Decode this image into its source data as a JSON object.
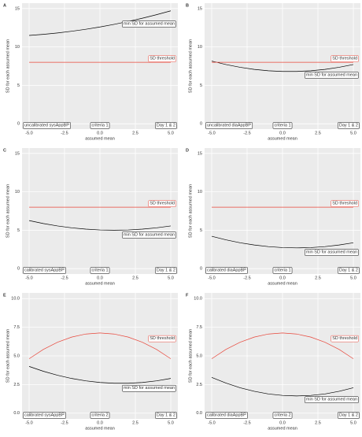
{
  "chart_data": [
    {
      "type": "line",
      "panel_label": "A",
      "x_label": "assumed mean",
      "y_label": "SD for each assumed mean",
      "x": [
        -5,
        -4,
        -3,
        -2,
        -1,
        0,
        1,
        2,
        3,
        4,
        5
      ],
      "series": [
        {
          "name": "min SD for assumed mean",
          "color": "#000000",
          "values": [
            11.5,
            11.64,
            11.82,
            12.04,
            12.3,
            12.6,
            12.94,
            13.32,
            13.74,
            14.2,
            14.7
          ]
        },
        {
          "name": "SD threshold",
          "color": "#e8463a",
          "values": [
            8,
            8,
            8,
            8,
            8,
            8,
            8,
            8,
            8,
            8,
            8
          ]
        }
      ],
      "annotations": [
        "uncalibrated sysAppBP",
        "criteria 1",
        "Day 1 & 2"
      ],
      "xlim": [
        -5.5,
        5.5
      ],
      "xticks": [
        {
          "value": -5,
          "label": "-5.0"
        },
        {
          "value": -2.5,
          "label": "-2.5"
        },
        {
          "value": 0,
          "label": "0.0"
        },
        {
          "value": 2.5,
          "label": "2.5"
        },
        {
          "value": 5,
          "label": "5.0"
        }
      ],
      "ylim": [
        -0.7,
        15.7
      ],
      "yticks": [
        0,
        5,
        10,
        15
      ],
      "grid": true
    },
    {
      "type": "line",
      "panel_label": "B",
      "x_label": "assumed mean",
      "y_label": "SD for each assumed mean",
      "x": [
        -5,
        -4,
        -3,
        -2,
        -1,
        0,
        1,
        2,
        3,
        4,
        5
      ],
      "series": [
        {
          "name": "min SD for assumed mean",
          "color": "#000000",
          "values": [
            8.16,
            7.71,
            7.35,
            7.08,
            6.9,
            6.81,
            6.81,
            6.9,
            7.08,
            7.35,
            7.71
          ]
        },
        {
          "name": "SD threshold",
          "color": "#e8463a",
          "values": [
            8,
            8,
            8,
            8,
            8,
            8,
            8,
            8,
            8,
            8,
            8
          ]
        }
      ],
      "annotations": [
        "uncalibrated diaAppBP",
        "criteria 1",
        "Day 1 & 2"
      ],
      "xlim": [
        -5.5,
        5.5
      ],
      "xticks": [
        {
          "value": -5,
          "label": "-5.0"
        },
        {
          "value": -2.5,
          "label": "-2.5"
        },
        {
          "value": 0,
          "label": "0.0"
        },
        {
          "value": 2.5,
          "label": "2.5"
        },
        {
          "value": 5,
          "label": "5.0"
        }
      ],
      "ylim": [
        -0.7,
        15.7
      ],
      "yticks": [
        0,
        5,
        10,
        15
      ],
      "grid": true
    },
    {
      "type": "line",
      "panel_label": "C",
      "x_label": "assumed mean",
      "y_label": "SD for each assumed mean",
      "x": [
        -5,
        -4,
        -3,
        -2,
        -1,
        0,
        1,
        2,
        3,
        4,
        5
      ],
      "series": [
        {
          "name": "min SD for assumed mean",
          "color": "#000000",
          "values": [
            6.26,
            5.875,
            5.56,
            5.315,
            5.14,
            5.035,
            5.0,
            5.035,
            5.14,
            5.315,
            5.56
          ]
        },
        {
          "name": "SD threshold",
          "color": "#e8463a",
          "values": [
            8,
            8,
            8,
            8,
            8,
            8,
            8,
            8,
            8,
            8,
            8
          ]
        }
      ],
      "annotations": [
        "calibrated sysAppBP",
        "criteria 1",
        "Day 1 & 2"
      ],
      "xlim": [
        -5.5,
        5.5
      ],
      "xticks": [
        {
          "value": -5,
          "label": "-5.0"
        },
        {
          "value": -2.5,
          "label": "-2.5"
        },
        {
          "value": 0,
          "label": "0.0"
        },
        {
          "value": 2.5,
          "label": "2.5"
        },
        {
          "value": 5,
          "label": "5.0"
        }
      ],
      "ylim": [
        -0.7,
        15.7
      ],
      "yticks": [
        0,
        5,
        10,
        15
      ],
      "grid": true
    },
    {
      "type": "line",
      "panel_label": "D",
      "x_label": "assumed mean",
      "y_label": "SD for each assumed mean",
      "x": [
        -5,
        -4,
        -3,
        -2,
        -1,
        0,
        1,
        2,
        3,
        4,
        5
      ],
      "series": [
        {
          "name": "min SD for assumed mean",
          "color": "#000000",
          "values": [
            4.21,
            3.75,
            3.37,
            3.08,
            2.87,
            2.74,
            2.7,
            2.74,
            2.87,
            3.08,
            3.37
          ]
        },
        {
          "name": "SD threshold",
          "color": "#e8463a",
          "values": [
            8,
            8,
            8,
            8,
            8,
            8,
            8,
            8,
            8,
            8,
            8
          ]
        }
      ],
      "annotations": [
        "calibrated diaAppBP",
        "criteria 1",
        "Day 1 & 2"
      ],
      "xlim": [
        -5.5,
        5.5
      ],
      "xticks": [
        {
          "value": -5,
          "label": "-5.0"
        },
        {
          "value": -2.5,
          "label": "-2.5"
        },
        {
          "value": 0,
          "label": "0.0"
        },
        {
          "value": 2.5,
          "label": "2.5"
        },
        {
          "value": 5,
          "label": "5.0"
        }
      ],
      "ylim": [
        -0.7,
        15.7
      ],
      "yticks": [
        0,
        5,
        10,
        15
      ],
      "grid": true
    },
    {
      "type": "line",
      "panel_label": "E",
      "x_label": "assumed mean",
      "y_label": "SD for each assumed mean",
      "x": [
        -5,
        -4,
        -3,
        -2,
        -1,
        0,
        1,
        2,
        3,
        4,
        5
      ],
      "series": [
        {
          "name": "min SD for assumed mean",
          "color": "#000000",
          "values": [
            4.08,
            3.66,
            3.31,
            3.03,
            2.82,
            2.68,
            2.61,
            2.61,
            2.68,
            2.82,
            3.03
          ]
        },
        {
          "name": "SD threshold",
          "color": "#e8463a",
          "values": [
            4.75,
            5.56,
            6.19,
            6.64,
            6.91,
            7.0,
            6.91,
            6.64,
            6.19,
            5.56,
            4.75
          ]
        }
      ],
      "annotations": [
        "calibrated sysAppBP",
        "criteria 2",
        "Day 1 & 2"
      ],
      "xlim": [
        -5.5,
        5.5
      ],
      "xticks": [
        {
          "value": -5,
          "label": "-5.0"
        },
        {
          "value": -2.5,
          "label": "-2.5"
        },
        {
          "value": 0,
          "label": "0.0"
        },
        {
          "value": 2.5,
          "label": "2.5"
        },
        {
          "value": 5,
          "label": "5.0"
        }
      ],
      "ylim": [
        -0.5,
        10.5
      ],
      "yticks": [
        {
          "value": 0,
          "label": "0.0"
        },
        2.5,
        {
          "value": 5,
          "label": "5.0"
        },
        7.5,
        {
          "value": 10,
          "label": "10.0"
        }
      ],
      "grid": true
    },
    {
      "type": "line",
      "panel_label": "F",
      "x_label": "assumed mean",
      "y_label": "SD for each assumed mean",
      "x": [
        -5,
        -4,
        -3,
        -2,
        -1,
        0,
        1,
        2,
        3,
        4,
        5
      ],
      "series": [
        {
          "name": "min SD for assumed mean",
          "color": "#000000",
          "values": [
            3.12,
            2.63,
            2.22,
            1.91,
            1.68,
            1.55,
            1.5,
            1.55,
            1.68,
            1.91,
            2.22
          ]
        },
        {
          "name": "SD threshold",
          "color": "#e8463a",
          "values": [
            4.75,
            5.56,
            6.19,
            6.64,
            6.91,
            7.0,
            6.91,
            6.64,
            6.19,
            5.56,
            4.75
          ]
        }
      ],
      "annotations": [
        "calibrated diaAppBP",
        "criteria 2",
        "Day 1 & 2"
      ],
      "xlim": [
        -5.5,
        5.5
      ],
      "xticks": [
        {
          "value": -5,
          "label": "-5.0"
        },
        {
          "value": -2.5,
          "label": "-2.5"
        },
        {
          "value": 0,
          "label": "0.0"
        },
        {
          "value": 2.5,
          "label": "2.5"
        },
        {
          "value": 5,
          "label": "5.0"
        }
      ],
      "ylim": [
        -0.5,
        10.5
      ],
      "yticks": [
        {
          "value": 0,
          "label": "0.0"
        },
        2.5,
        {
          "value": 5,
          "label": "5.0"
        },
        7.5,
        {
          "value": 10,
          "label": "10.0"
        }
      ],
      "grid": true
    }
  ]
}
